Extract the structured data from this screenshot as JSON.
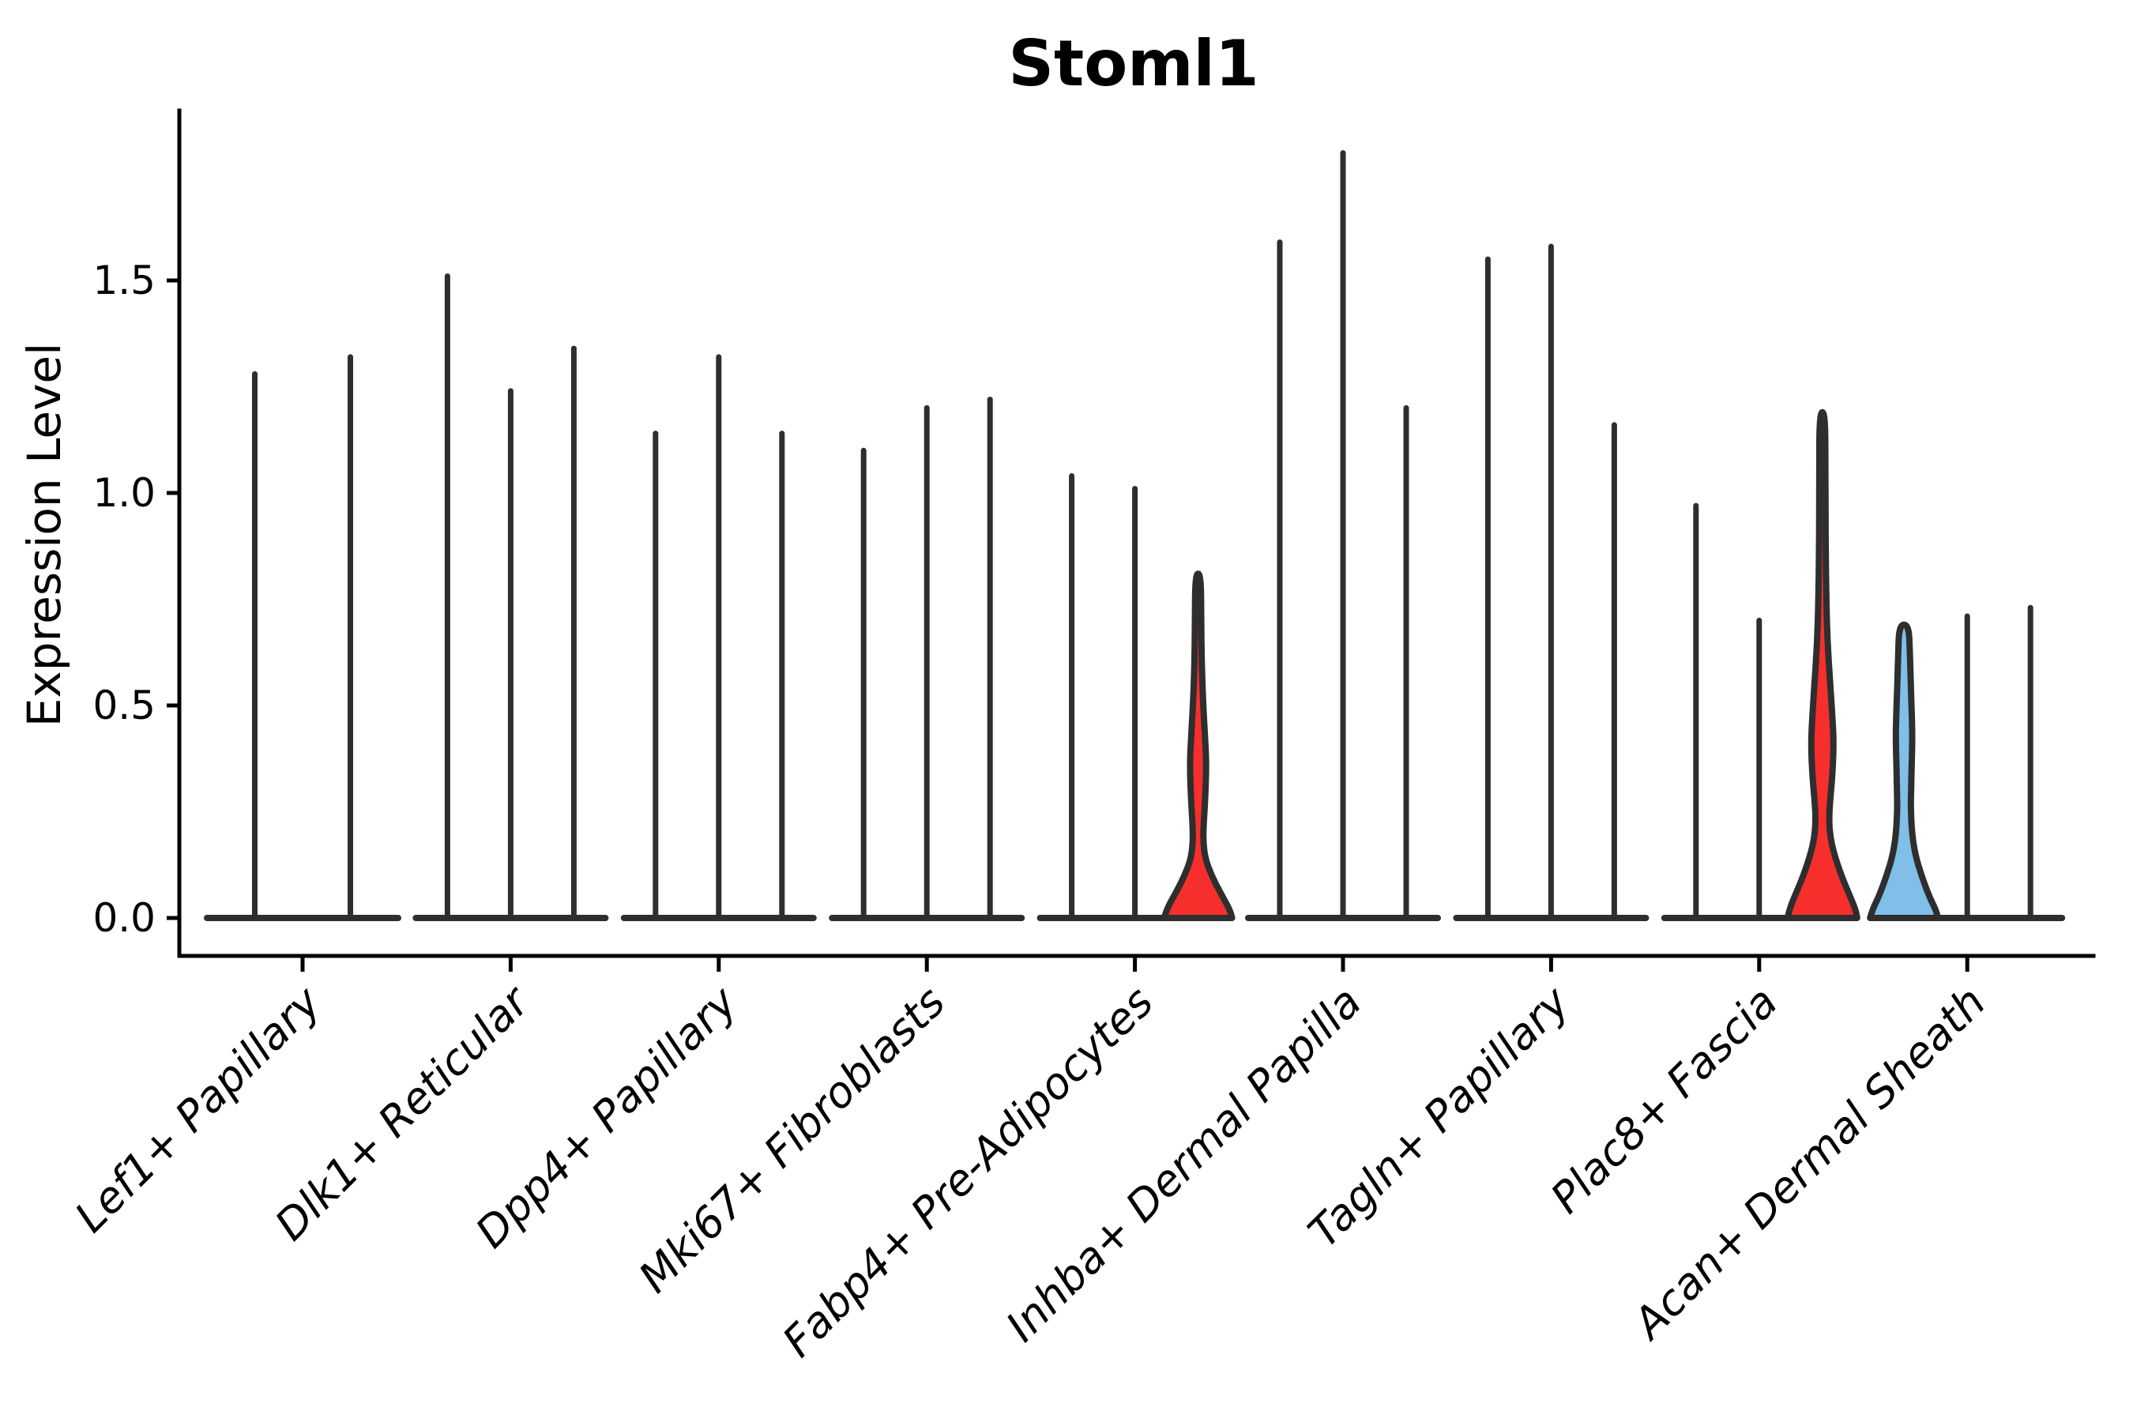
{
  "title": "Stoml1",
  "chart_data": {
    "type": "violin",
    "title": "Stoml1",
    "ylabel": "Expression Level",
    "xlabel": "",
    "legend": null,
    "grid": false,
    "ylim": [
      -0.09,
      1.9
    ],
    "yticks": [
      {
        "value": 0.0,
        "label": "0.0"
      },
      {
        "value": 0.5,
        "label": "0.5"
      },
      {
        "value": 1.0,
        "label": "1.0"
      },
      {
        "value": 1.5,
        "label": "1.5"
      }
    ],
    "categories": [
      "Lef1+ Papillary",
      "Dlk1+ Reticular",
      "Dpp4+ Papillary",
      "Mki67+ Fibroblasts",
      "Fabp4+ Pre-Adipocytes",
      "Inhba+ Dermal Papilla",
      "Tagln+ Papillary",
      "Plac8+ Fascia",
      "Acan+ Dermal Sheath"
    ],
    "colors": {
      "axis": "#000000",
      "text": "#000000",
      "outline": "#2e2e2e",
      "highlight_red": "#f62f2d",
      "highlight_blue": "#7fbfe8",
      "background": "#ffffff"
    },
    "groups": [
      {
        "category": "Lef1+ Papillary",
        "violins": [
          {
            "max": 1.28,
            "shape": "spike",
            "fill": null
          },
          {
            "max": 1.32,
            "shape": "spike",
            "fill": null
          }
        ]
      },
      {
        "category": "Dlk1+ Reticular",
        "violins": [
          {
            "max": 1.51,
            "shape": "spike",
            "fill": null
          },
          {
            "max": 1.24,
            "shape": "spike",
            "fill": null
          },
          {
            "max": 1.34,
            "shape": "spike",
            "fill": null
          }
        ]
      },
      {
        "category": "Dpp4+ Papillary",
        "violins": [
          {
            "max": 1.14,
            "shape": "spike",
            "fill": null
          },
          {
            "max": 1.32,
            "shape": "spike",
            "fill": null
          },
          {
            "max": 1.14,
            "shape": "spike",
            "fill": null
          }
        ]
      },
      {
        "category": "Mki67+ Fibroblasts",
        "violins": [
          {
            "max": 1.1,
            "shape": "spike",
            "fill": null
          },
          {
            "max": 1.2,
            "shape": "spike",
            "fill": null
          },
          {
            "max": 1.22,
            "shape": "spike",
            "fill": null
          }
        ]
      },
      {
        "category": "Fabp4+ Pre-Adipocytes",
        "violins": [
          {
            "max": 1.04,
            "shape": "spike",
            "fill": null
          },
          {
            "max": 1.01,
            "shape": "spike",
            "fill": null
          },
          {
            "max": 0.81,
            "shape": "violin",
            "fill": "#f62f2d",
            "profile": [
              [
                0,
                86
              ],
              [
                0.02,
                80
              ],
              [
                0.06,
                56
              ],
              [
                0.1,
                34
              ],
              [
                0.14,
                18
              ],
              [
                0.18,
                13
              ],
              [
                0.22,
                14
              ],
              [
                0.28,
                18
              ],
              [
                0.36,
                21
              ],
              [
                0.42,
                18
              ],
              [
                0.5,
                13
              ],
              [
                0.6,
                9
              ],
              [
                0.7,
                8
              ],
              [
                0.81,
                7
              ]
            ]
          }
        ]
      },
      {
        "category": "Inhba+ Dermal Papilla",
        "violins": [
          {
            "max": 1.59,
            "shape": "spike",
            "fill": null
          },
          {
            "max": 1.8,
            "shape": "spike",
            "fill": null
          },
          {
            "max": 1.2,
            "shape": "spike",
            "fill": null
          }
        ]
      },
      {
        "category": "Tagln+ Papillary",
        "violins": [
          {
            "max": 1.55,
            "shape": "spike",
            "fill": null
          },
          {
            "max": 1.58,
            "shape": "spike",
            "fill": null
          },
          {
            "max": 1.16,
            "shape": "spike",
            "fill": null
          }
        ]
      },
      {
        "category": "Plac8+ Fascia",
        "violins": [
          {
            "max": 0.97,
            "shape": "spike",
            "fill": null
          },
          {
            "max": 0.7,
            "shape": "spike",
            "fill": null
          },
          {
            "max": 1.19,
            "shape": "violin",
            "fill": "#f62f2d",
            "profile": [
              [
                0,
                88
              ],
              [
                0.02,
                84
              ],
              [
                0.06,
                66
              ],
              [
                0.1,
                48
              ],
              [
                0.15,
                30
              ],
              [
                0.19,
                20
              ],
              [
                0.23,
                17
              ],
              [
                0.27,
                19
              ],
              [
                0.33,
                25
              ],
              [
                0.41,
                29
              ],
              [
                0.48,
                25
              ],
              [
                0.55,
                20
              ],
              [
                0.65,
                13
              ],
              [
                0.75,
                10
              ],
              [
                0.9,
                8
              ],
              [
                1.05,
                8
              ],
              [
                1.19,
                7
              ]
            ]
          }
        ]
      },
      {
        "category": "Acan+ Dermal Sheath",
        "violins": [
          {
            "max": 0.69,
            "shape": "violin",
            "fill": "#7fbfe8",
            "profile": [
              [
                0,
                86
              ],
              [
                0.02,
                80
              ],
              [
                0.05,
                64
              ],
              [
                0.1,
                44
              ],
              [
                0.15,
                28
              ],
              [
                0.2,
                20
              ],
              [
                0.26,
                17
              ],
              [
                0.3,
                18
              ],
              [
                0.35,
                19
              ],
              [
                0.42,
                21
              ],
              [
                0.47,
                20
              ],
              [
                0.55,
                17
              ],
              [
                0.62,
                15
              ],
              [
                0.69,
                12
              ]
            ]
          },
          {
            "max": 0.71,
            "shape": "spike",
            "fill": null
          },
          {
            "max": 0.73,
            "shape": "spike",
            "fill": null
          }
        ]
      }
    ]
  }
}
